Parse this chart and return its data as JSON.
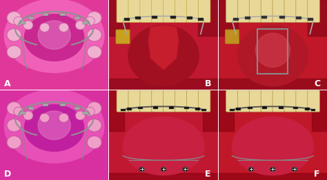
{
  "figsize": [
    4.74,
    2.61
  ],
  "dpi": 100,
  "panels": [
    {
      "label": "A",
      "type": "diagram",
      "bg": "#e0389a",
      "gum_outer": "#f060b8",
      "gum_inner": "#e040a8",
      "tooth_color": "#f0b0d0",
      "tooth_edge": "#d060a0",
      "palate_color": "#c82890",
      "wire_color": "#909090",
      "chain_color": "#888888",
      "bracket_color": "#aaaaaa"
    },
    {
      "label": "B",
      "type": "intraoral_upper",
      "bg": "#c01830",
      "gum_color": "#c01830",
      "palate_color": "#a01020",
      "tooth_color": "#e8d898",
      "tooth_edge": "#c0a840",
      "wire_color": "#aaaaaa",
      "bracket_color": "#222222",
      "flap_color": "#cc1828",
      "gold_color": "#c8a020"
    },
    {
      "label": "C",
      "type": "intraoral_upper_rect",
      "bg": "#c82030",
      "gum_color": "#c01828",
      "palate_color": "#b01828",
      "tooth_color": "#e8d898",
      "tooth_edge": "#b09040",
      "wire_color": "#aaaaaa",
      "bracket_color": "#333333",
      "rect_color": "#888888",
      "gold_color": "#c09020"
    },
    {
      "label": "D",
      "type": "diagram",
      "bg": "#d830a0",
      "gum_outer": "#e850b8",
      "gum_inner": "#d038a8",
      "tooth_color": "#f0a0c8",
      "tooth_edge": "#c858a0",
      "palate_color": "#c020a0",
      "wire_color": "#909090",
      "chain_color": "#888888",
      "bracket_color": "#aaaaaa"
    },
    {
      "label": "E",
      "type": "intraoral_lower",
      "bg": "#b81828",
      "gum_color": "#c01830",
      "palate_color": "#a01020",
      "tooth_color": "#e8d898",
      "tooth_edge": "#b09040",
      "wire_color": "#555555",
      "bracket_color": "#111111",
      "lower_wire_color": "#888888",
      "screw_color": "#111111"
    },
    {
      "label": "F",
      "type": "intraoral_lower2",
      "bg": "#c01828",
      "gum_color": "#c01828",
      "palate_color": "#a81828",
      "tooth_color": "#e8d898",
      "tooth_edge": "#b09040",
      "wire_color": "#555555",
      "bracket_color": "#111111",
      "lower_wire_color": "#888888",
      "screw_color": "#111111"
    }
  ]
}
